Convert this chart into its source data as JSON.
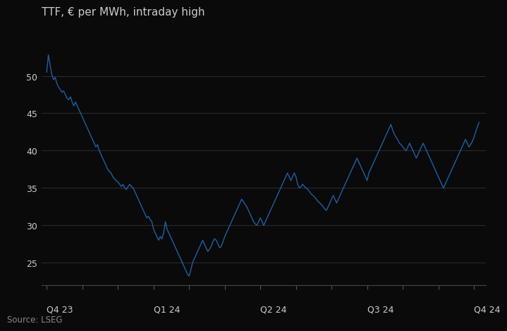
{
  "title": "TTF, € per MWh, intraday high",
  "source": "Source: LSEG",
  "line_color": "#1f5fa6",
  "background_color": "#0a0a0a",
  "text_color": "#cccccc",
  "grid_color": "#2a2a2a",
  "ylim": [
    22,
    56
  ],
  "yticks": [
    25,
    30,
    35,
    40,
    45,
    50
  ],
  "title_fontsize": 11,
  "source_fontsize": 8.5,
  "tick_label_fontsize": 9,
  "quarter_labels": [
    "Q4 23",
    "Q1 24",
    "Q2 24",
    "Q3 24",
    "Q4 24"
  ],
  "quarter_positions": [
    0,
    63,
    126,
    189,
    252
  ],
  "data_points": [
    50.5,
    52.8,
    51.5,
    50.2,
    49.5,
    49.8,
    49.0,
    48.5,
    48.2,
    47.8,
    48.0,
    47.5,
    47.0,
    46.8,
    47.2,
    46.5,
    46.0,
    46.5,
    46.0,
    45.5,
    45.0,
    44.5,
    44.0,
    43.5,
    43.0,
    42.5,
    42.0,
    41.5,
    41.0,
    40.5,
    40.8,
    40.0,
    39.5,
    39.0,
    38.5,
    38.0,
    37.5,
    37.2,
    37.0,
    36.5,
    36.2,
    36.0,
    35.8,
    35.5,
    35.2,
    35.5,
    35.0,
    34.8,
    35.2,
    35.5,
    35.2,
    35.0,
    34.5,
    34.0,
    33.5,
    33.0,
    32.5,
    32.0,
    31.5,
    31.0,
    31.2,
    30.8,
    30.5,
    29.5,
    29.0,
    28.5,
    28.0,
    28.5,
    28.2,
    29.0,
    30.5,
    29.5,
    29.0,
    28.5,
    28.0,
    27.5,
    27.0,
    26.5,
    26.0,
    25.5,
    25.0,
    24.5,
    24.0,
    23.5,
    23.2,
    24.0,
    25.0,
    25.5,
    26.0,
    26.5,
    27.0,
    27.5,
    28.0,
    27.5,
    27.0,
    26.5,
    26.8,
    27.2,
    27.8,
    28.2,
    28.0,
    27.5,
    27.0,
    27.2,
    27.8,
    28.5,
    29.0,
    29.5,
    30.0,
    30.5,
    31.0,
    31.5,
    32.0,
    32.5,
    33.0,
    33.5,
    33.2,
    32.8,
    32.5,
    32.0,
    31.5,
    31.0,
    30.5,
    30.2,
    30.0,
    30.5,
    31.0,
    30.5,
    30.0,
    30.5,
    31.0,
    31.5,
    32.0,
    32.5,
    33.0,
    33.5,
    34.0,
    34.5,
    35.0,
    35.5,
    36.0,
    36.5,
    37.0,
    36.5,
    36.0,
    36.5,
    37.0,
    36.5,
    35.5,
    35.0,
    35.2,
    35.5,
    35.2,
    35.0,
    34.8,
    34.5,
    34.2,
    34.0,
    33.8,
    33.5,
    33.2,
    33.0,
    32.8,
    32.5,
    32.2,
    32.0,
    32.5,
    33.0,
    33.5,
    34.0,
    33.5,
    33.0,
    33.5,
    34.0,
    34.5,
    35.0,
    35.5,
    36.0,
    36.5,
    37.0,
    37.5,
    38.0,
    38.5,
    39.0,
    38.5,
    38.0,
    37.5,
    37.0,
    36.5,
    36.0,
    37.0,
    37.5,
    38.0,
    38.5,
    39.0,
    39.5,
    40.0,
    40.5,
    41.0,
    41.5,
    42.0,
    42.5,
    43.0,
    43.5,
    42.8,
    42.2,
    41.8,
    41.5,
    41.0,
    40.8,
    40.5,
    40.2,
    40.0,
    40.5,
    41.0,
    40.5,
    40.0,
    39.5,
    39.0,
    39.5,
    40.0,
    40.5,
    41.0,
    40.5,
    40.0,
    39.5,
    39.0,
    38.5,
    38.0,
    37.5,
    37.0,
    36.5,
    36.0,
    35.5,
    35.0,
    35.5,
    36.0,
    36.5,
    37.0,
    37.5,
    38.0,
    38.5,
    39.0,
    39.5,
    40.0,
    40.5,
    41.0,
    41.5,
    41.0,
    40.5,
    40.8,
    41.2,
    41.8,
    42.5,
    43.2,
    43.8
  ]
}
